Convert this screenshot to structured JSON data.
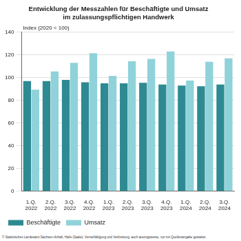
{
  "chart_data": {
    "type": "bar",
    "title": [
      "Entwicklung der Messzahlen für Beschäftigte und Umsatz",
      "im zulassungspflichtigen Handwerk"
    ],
    "y_label": "Index (2020 = 100)",
    "footnote": "© Statistisches Landesamt Sachsen-Anhalt, Halle (Saale). Vervielfältigung und Verbreitung, auch auszugsweise, nur mit Quellenangabe gestattet.",
    "categories": [
      "1.Q. 2022",
      "2.Q. 2022",
      "3.Q. 2022",
      "4.Q. 2022",
      "1.Q. 2023",
      "2.Q. 2023",
      "3.Q. 2023",
      "4.Q. 2023",
      "1.Q. 2024",
      "2.Q. 2024",
      "3.Q. 2024"
    ],
    "series": [
      {
        "name": "Beschäftigte",
        "color": "#2e8a92",
        "values": [
          97,
          97,
          98,
          96,
          95,
          95,
          95.5,
          94,
          93,
          92.5,
          94
        ]
      },
      {
        "name": "Umsatz",
        "color": "#90d2da",
        "values": [
          89.5,
          105.5,
          113,
          121.5,
          101.5,
          114.5,
          116.5,
          123,
          97.5,
          114,
          117
        ]
      }
    ],
    "ylim": [
      0,
      140
    ],
    "yticks": [
      0,
      20,
      40,
      60,
      80,
      100,
      120,
      140
    ],
    "grid": true,
    "legend": "bottom"
  }
}
